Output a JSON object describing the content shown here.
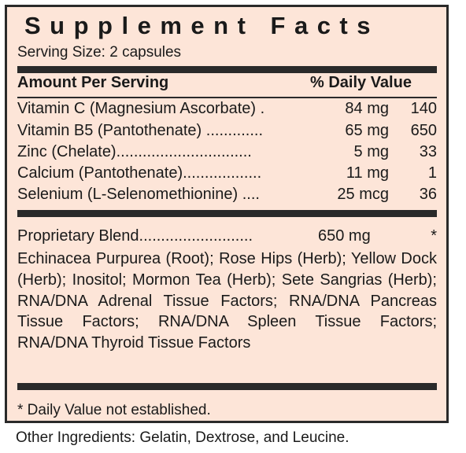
{
  "title": "Supplement Facts",
  "serving": "Serving Size: 2 capsules",
  "header": {
    "amount_label": "Amount Per Serving",
    "dv_label": "% Daily Value"
  },
  "nutrients": [
    {
      "name": "Vitamin C (Magnesium Ascorbate) .",
      "amount": "84 mg",
      "dv": "140"
    },
    {
      "name": "Vitamin B5 (Pantothenate) .............",
      "amount": "65 mg",
      "dv": "650"
    },
    {
      "name": "Zinc (Chelate)...............................",
      "amount": "5 mg",
      "dv": "33"
    },
    {
      "name": "Calcium (Pantothenate)..................",
      "amount": "11 mg",
      "dv": "1"
    },
    {
      "name": "Selenium (L-Selenomethionine) ....",
      "amount": "25 mcg",
      "dv": "36"
    }
  ],
  "blend": {
    "name": "Proprietary Blend..........................",
    "amount": "650 mg",
    "dv": "*",
    "ingredients": "Echinacea Purpurea (Root); Rose Hips (Herb); Yellow Dock (Herb); Inositol; Mormon Tea (Herb); Sete Sangrias (Herb); RNA/DNA Adrenal Tissue Factors; RNA/DNA Pancreas Tissue Factors; RNA/DNA Spleen Tissue Factors; RNA/DNA Thyroid Tissue Factors"
  },
  "footnote": "* Daily Value not established.",
  "other_ingredients": "Other Ingredients: Gelatin, Dextrose, and Leucine."
}
